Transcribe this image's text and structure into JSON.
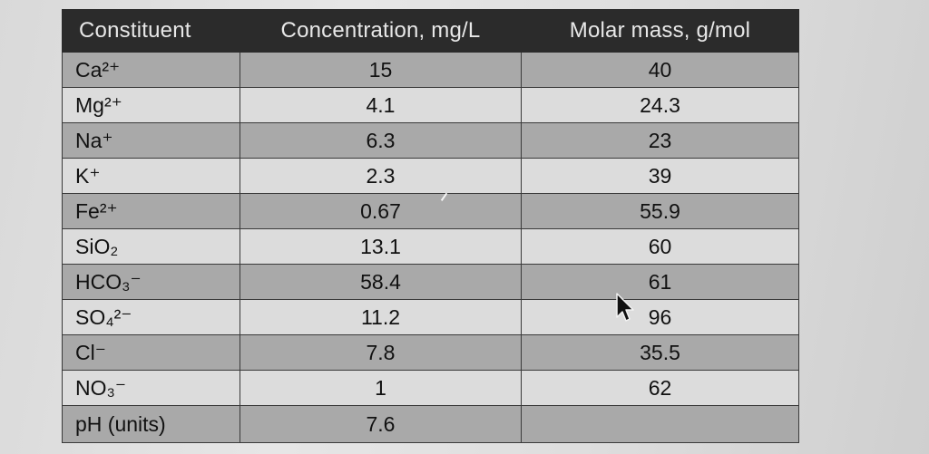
{
  "table": {
    "headers": {
      "constituent": "Constituent",
      "concentration": "Concentration, mg/L",
      "molar_mass": "Molar mass, g/mol"
    },
    "rows": [
      {
        "constituent": "Ca²⁺",
        "concentration": "15",
        "molar_mass": "40"
      },
      {
        "constituent": "Mg²⁺",
        "concentration": "4.1",
        "molar_mass": "24.3"
      },
      {
        "constituent": "Na⁺",
        "concentration": "6.3",
        "molar_mass": "23"
      },
      {
        "constituent": "K⁺",
        "concentration": "2.3",
        "molar_mass": "39"
      },
      {
        "constituent": "Fe²⁺",
        "concentration": "0.67",
        "molar_mass": "55.9"
      },
      {
        "constituent": "SiO₂",
        "concentration": "13.1",
        "molar_mass": "60"
      },
      {
        "constituent": "HCO₃⁻",
        "concentration": "58.4",
        "molar_mass": "61"
      },
      {
        "constituent": "SO₄²⁻",
        "concentration": "11.2",
        "molar_mass": "96"
      },
      {
        "constituent": "Cl⁻",
        "concentration": "7.8",
        "molar_mass": "35.5"
      },
      {
        "constituent": "NO₃⁻",
        "concentration": "1",
        "molar_mass": "62"
      },
      {
        "constituent": "pH (units)",
        "concentration": "7.6",
        "molar_mass": ""
      }
    ]
  },
  "colors": {
    "header_bg": "#2b2b2b",
    "row_dark": "#a9a9a9",
    "row_light": "#dcdcdc"
  },
  "icons": {
    "pointer": "mouse-pointer-icon"
  }
}
